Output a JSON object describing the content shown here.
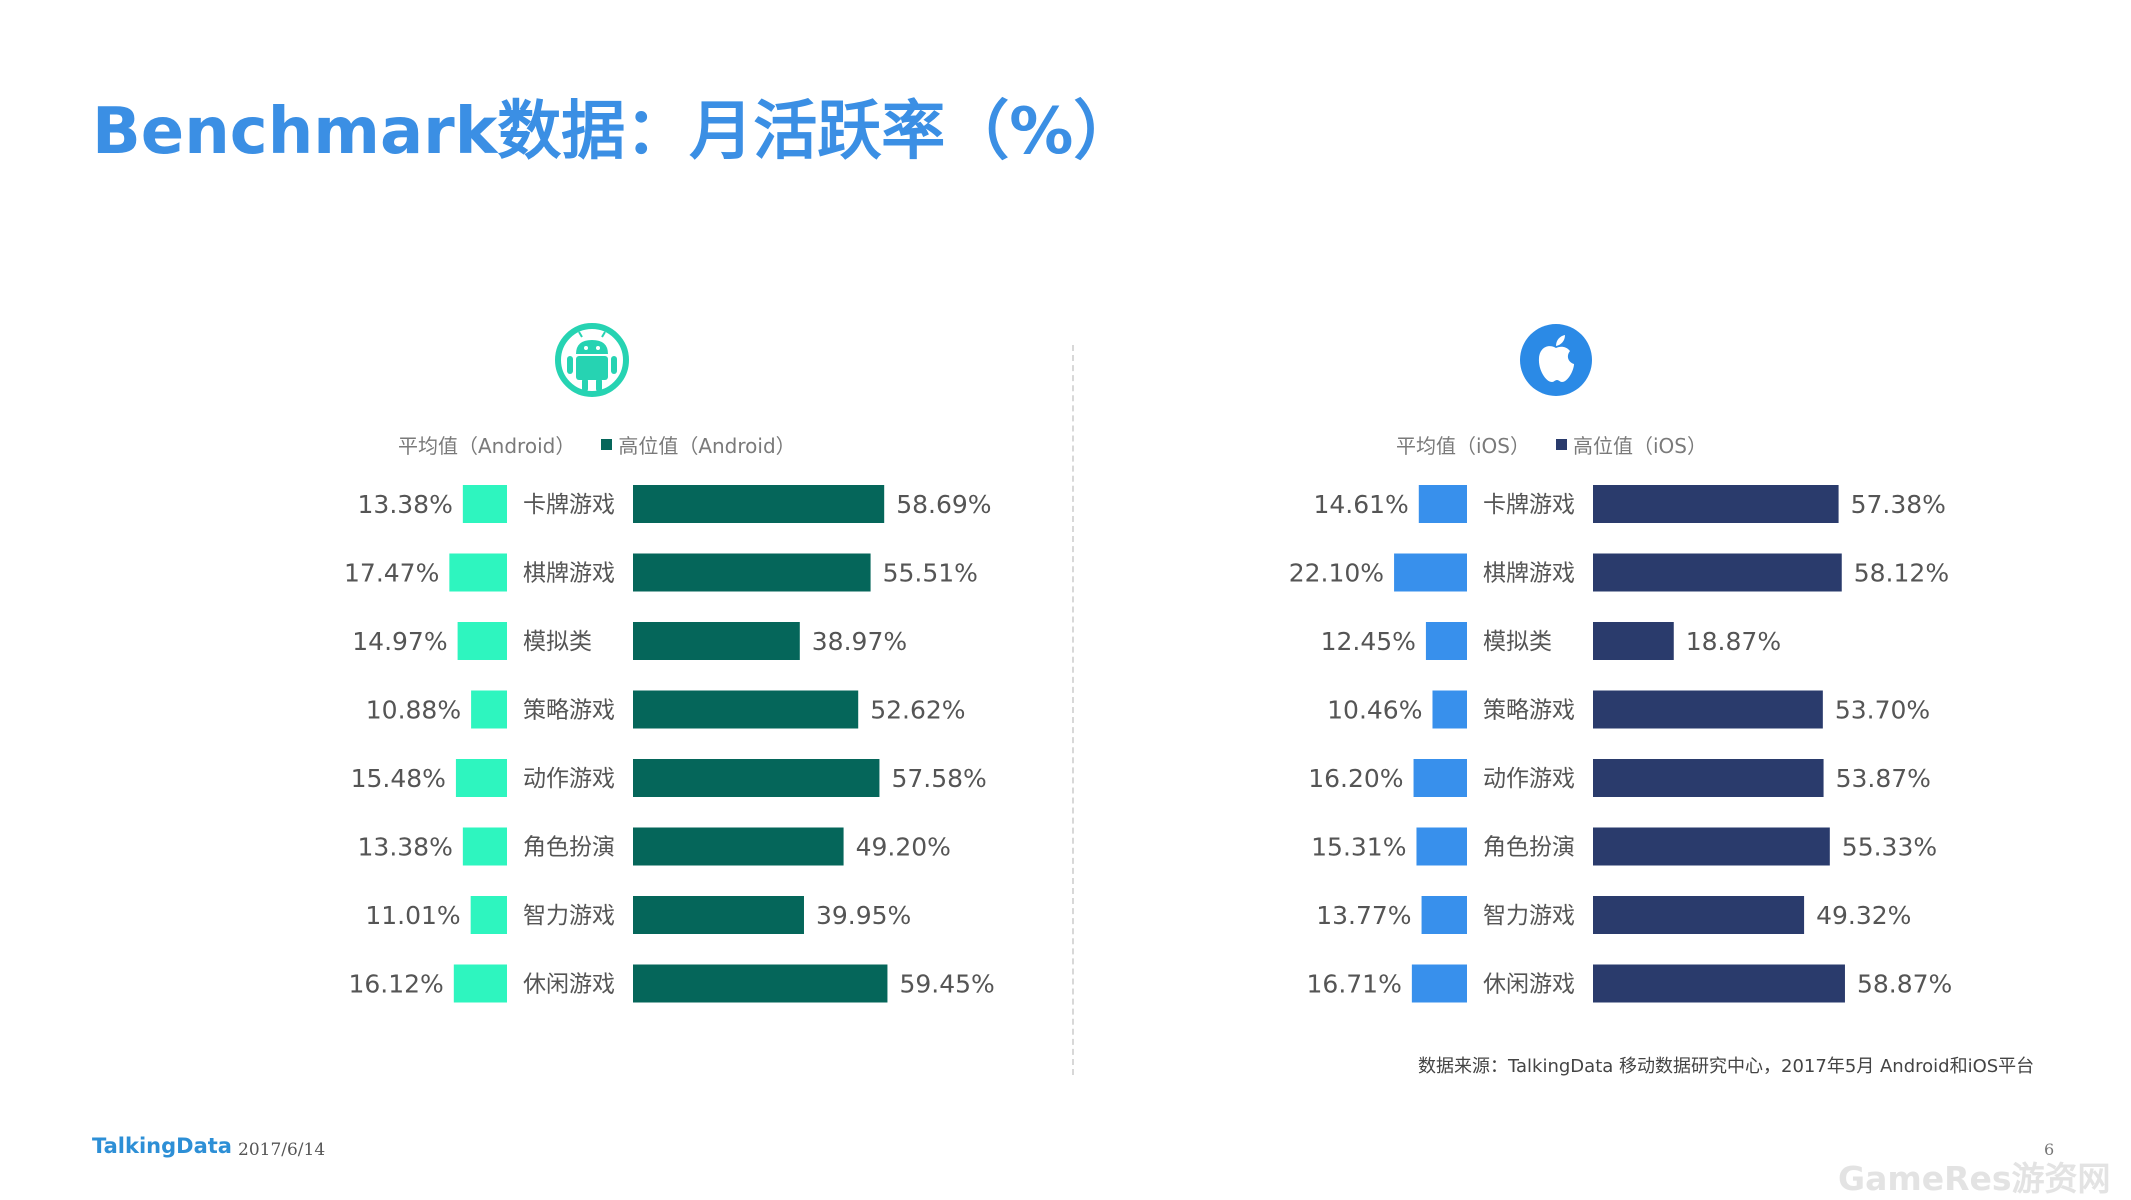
{
  "page": {
    "title": "Benchmark数据：月活跃率（%）",
    "source": "数据来源：TalkingData 移动数据研究中心，2017年5月 Android和iOS平台",
    "footer_logo": "TalkingData",
    "footer_date": "2017/6/14",
    "page_number": "6",
    "watermark": "GameRes游资网"
  },
  "icons": {
    "android": "android-icon",
    "ios": "apple-icon"
  },
  "colors": {
    "android_avg": "#2ef5bf",
    "android_high": "#05665a",
    "ios_avg": "#3890ec",
    "ios_high": "#2a3b6c",
    "android_icon": "#26d3b2",
    "ios_icon": "#2b8ae6",
    "title": "#3b8fe4",
    "text": "#555555"
  },
  "chart_data": [
    {
      "type": "bar",
      "categories": [
        "卡牌游戏",
        "棋牌游戏",
        "模拟类",
        "策略游戏",
        "动作游戏",
        "角色扮演",
        "智力游戏",
        "休闲游戏"
      ],
      "series": [
        {
          "name": "平均值（Android）",
          "values": [
            13.38,
            17.47,
            14.97,
            10.88,
            15.48,
            13.38,
            11.01,
            16.12
          ],
          "labels": [
            "13.38%",
            "17.47%",
            "14.97%",
            "10.88%",
            "15.48%",
            "13.38%",
            "11.01%",
            "16.12%"
          ]
        },
        {
          "name": "高位值（Android）",
          "values": [
            58.69,
            55.51,
            38.97,
            52.62,
            57.58,
            49.2,
            39.95,
            59.45
          ],
          "labels": [
            "58.69%",
            "55.51%",
            "38.97%",
            "52.62%",
            "57.58%",
            "49.20%",
            "39.95%",
            "59.45%"
          ]
        }
      ],
      "legend": "top",
      "grid": false
    },
    {
      "type": "bar",
      "categories": [
        "卡牌游戏",
        "棋牌游戏",
        "模拟类",
        "策略游戏",
        "动作游戏",
        "角色扮演",
        "智力游戏",
        "休闲游戏"
      ],
      "series": [
        {
          "name": "平均值（iOS）",
          "values": [
            14.61,
            22.1,
            12.45,
            10.46,
            16.2,
            15.31,
            13.77,
            16.71
          ],
          "labels": [
            "14.61%",
            "22.10%",
            "12.45%",
            "10.46%",
            "16.20%",
            "15.31%",
            "13.77%",
            "16.71%"
          ]
        },
        {
          "name": "高位值（iOS）",
          "values": [
            57.38,
            58.12,
            18.87,
            53.7,
            53.87,
            55.33,
            49.32,
            58.87
          ],
          "labels": [
            "57.38%",
            "58.12%",
            "18.87%",
            "53.70%",
            "53.87%",
            "55.33%",
            "49.32%",
            "58.87%"
          ]
        }
      ],
      "legend": "top",
      "grid": false
    }
  ]
}
